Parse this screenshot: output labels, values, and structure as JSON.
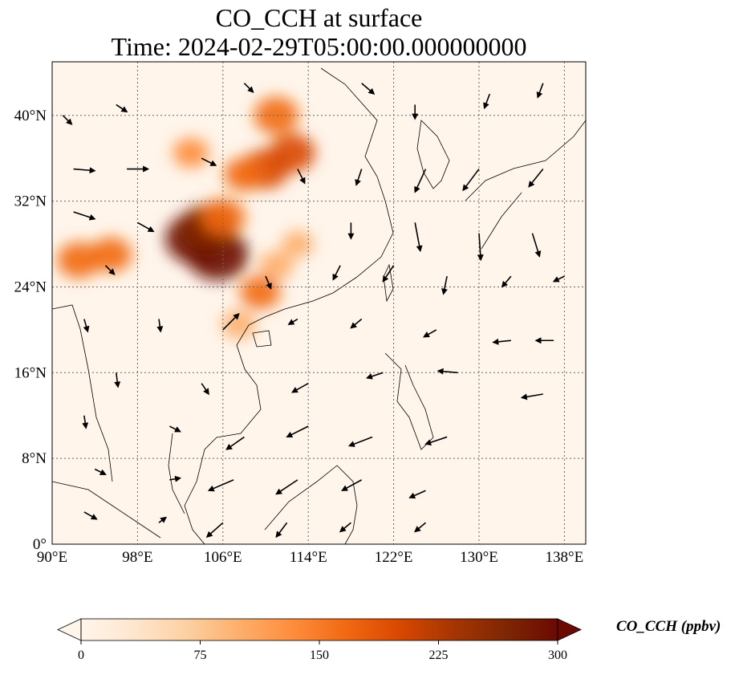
{
  "title": {
    "line1": "CO_CCH at surface",
    "line2": "Time: 2024-02-29T05:00:00.000000000"
  },
  "map": {
    "lon_ticks": [
      "90°E",
      "98°E",
      "106°E",
      "114°E",
      "122°E",
      "130°E",
      "138°E"
    ],
    "lat_ticks": [
      "0°",
      "8°N",
      "16°N",
      "24°N",
      "32°N",
      "40°N"
    ],
    "lon_values": [
      90,
      98,
      106,
      114,
      122,
      130,
      138
    ],
    "lat_values": [
      0,
      8,
      16,
      24,
      32,
      40
    ],
    "extent": {
      "lon_min": 90,
      "lon_max": 140,
      "lat_min": 0,
      "lat_max": 45
    },
    "background_color": "#fff5eb",
    "hotspots": [
      {
        "lon": 103.5,
        "lat": 28.5,
        "level": 300
      },
      {
        "lon": 105.5,
        "lat": 27.0,
        "level": 300
      },
      {
        "lon": 104.5,
        "lat": 29.5,
        "level": 260
      },
      {
        "lon": 106.0,
        "lat": 30.5,
        "level": 180
      },
      {
        "lon": 110.0,
        "lat": 35.0,
        "level": 200
      },
      {
        "lon": 111.0,
        "lat": 40.0,
        "level": 180
      },
      {
        "lon": 112.5,
        "lat": 36.5,
        "level": 190
      },
      {
        "lon": 108.0,
        "lat": 34.5,
        "level": 150
      },
      {
        "lon": 103.0,
        "lat": 36.5,
        "level": 120
      },
      {
        "lon": 92.5,
        "lat": 26.5,
        "level": 170
      },
      {
        "lon": 95.5,
        "lat": 27.0,
        "level": 160
      },
      {
        "lon": 109.5,
        "lat": 23.5,
        "level": 150
      },
      {
        "lon": 107.5,
        "lat": 20.5,
        "level": 110
      },
      {
        "lon": 111.0,
        "lat": 26.0,
        "level": 110
      },
      {
        "lon": 113.0,
        "lat": 28.0,
        "level": 90
      }
    ],
    "wind_vectors": [
      [
        91,
        40,
        0.5,
        -0.5
      ],
      [
        96,
        41,
        0.6,
        -0.4
      ],
      [
        108,
        43,
        0.5,
        -0.5
      ],
      [
        119,
        43,
        0.7,
        -0.6
      ],
      [
        124,
        41,
        0,
        -0.8
      ],
      [
        131,
        42,
        -0.3,
        -0.8
      ],
      [
        136,
        43,
        -0.3,
        -0.8
      ],
      [
        92,
        35,
        1.2,
        -0.1
      ],
      [
        97,
        35,
        1.2,
        0
      ],
      [
        104,
        36,
        0.8,
        -0.4
      ],
      [
        113,
        35,
        0.4,
        -0.8
      ],
      [
        119,
        35,
        -0.3,
        -0.9
      ],
      [
        125,
        35,
        -0.6,
        -1.3
      ],
      [
        130,
        35,
        -0.9,
        -1.2
      ],
      [
        136,
        35,
        -0.8,
        -1.0
      ],
      [
        92,
        31,
        1.2,
        -0.4
      ],
      [
        98,
        30,
        0.9,
        -0.5
      ],
      [
        118,
        30,
        0,
        -0.9
      ],
      [
        124,
        30,
        0.3,
        -1.6
      ],
      [
        130,
        29,
        0.1,
        -1.5
      ],
      [
        135,
        29,
        0.4,
        -1.3
      ],
      [
        95,
        26,
        0.5,
        -0.5
      ],
      [
        110,
        25,
        0.3,
        -0.7
      ],
      [
        117,
        26,
        -0.4,
        -0.8
      ],
      [
        122,
        26,
        -0.6,
        -0.9
      ],
      [
        127,
        25,
        -0.2,
        -1.0
      ],
      [
        133,
        25,
        -0.5,
        -0.6
      ],
      [
        138,
        25,
        -0.6,
        -0.3
      ],
      [
        93,
        21,
        0.2,
        -0.7
      ],
      [
        100,
        21,
        0.1,
        -0.7
      ],
      [
        106,
        20,
        0.9,
        0.9
      ],
      [
        113,
        21,
        -0.5,
        -0.3
      ],
      [
        119,
        21,
        -0.6,
        -0.5
      ],
      [
        126,
        20,
        -0.7,
        -0.4
      ],
      [
        133,
        19,
        -1.0,
        -0.1
      ],
      [
        137,
        19,
        -1.0,
        0
      ],
      [
        96,
        16,
        0.1,
        -0.8
      ],
      [
        104,
        15,
        0.4,
        -0.6
      ],
      [
        114,
        15,
        -0.9,
        -0.5
      ],
      [
        121,
        16,
        -0.9,
        -0.3
      ],
      [
        128,
        16,
        -1.1,
        0.1
      ],
      [
        136,
        14,
        -1.2,
        -0.2
      ],
      [
        93,
        12,
        0.1,
        -0.7
      ],
      [
        101,
        11,
        0.6,
        -0.3
      ],
      [
        108,
        10,
        -1.0,
        -0.7
      ],
      [
        114,
        11,
        -1.2,
        -0.6
      ],
      [
        120,
        10,
        -1.3,
        -0.5
      ],
      [
        127,
        10,
        -1.2,
        -0.4
      ],
      [
        94,
        7,
        0.6,
        -0.3
      ],
      [
        101,
        6,
        0.6,
        0.1
      ],
      [
        107,
        6,
        -1.4,
        -0.6
      ],
      [
        113,
        6,
        -1.2,
        -0.8
      ],
      [
        119,
        6,
        -1.1,
        -0.6
      ],
      [
        125,
        5,
        -0.9,
        -0.4
      ],
      [
        93,
        3,
        0.7,
        -0.4
      ],
      [
        100,
        2,
        0.4,
        0.3
      ],
      [
        106,
        2,
        -0.9,
        -0.8
      ],
      [
        112,
        2,
        -0.6,
        -0.8
      ],
      [
        118,
        2,
        -0.6,
        -0.5
      ],
      [
        125,
        2,
        -0.6,
        -0.5
      ]
    ]
  },
  "colorbar": {
    "ticks": [
      "0",
      "75",
      "150",
      "225",
      "300"
    ],
    "tick_values": [
      0,
      75,
      150,
      225,
      300
    ],
    "label": "CO_CCH (ppbv)",
    "colors": [
      "#fff5eb",
      "#fee6ce",
      "#fdd0a2",
      "#fdae6b",
      "#fd8d3c",
      "#f16913",
      "#d94801",
      "#a63603",
      "#7f2704",
      "#6b0a03"
    ]
  }
}
